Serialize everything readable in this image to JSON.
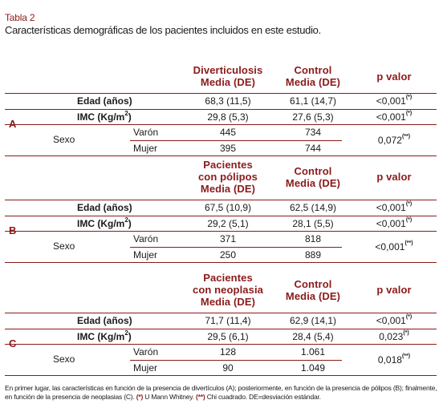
{
  "caption": {
    "label": "Tabla 2",
    "title": "Características demográficas de los pacientes incluidos en este estudio."
  },
  "sections": [
    {
      "letter": "A",
      "header1": [
        "Diverticulosis",
        "Media (DE)"
      ],
      "header2": [
        "Control",
        "Media (DE)"
      ],
      "header_p": "p valor",
      "rows": {
        "edad": {
          "label": "Edad (años)",
          "v1": "68,3 (11,5)",
          "v2": "61,1 (14,7)",
          "p": "<0,001",
          "sup": "(*)"
        },
        "imc": {
          "label": "IMC (Kg/m",
          "label_sup": "2",
          "label_end": ")",
          "v1": "29,8 (5,3)",
          "v2": "27,6 (5,3)",
          "p": "<0,001",
          "sup": "(*)"
        },
        "sexo": {
          "label": "Sexo",
          "varon": "Varón",
          "mujer": "Mujer",
          "v1_varon": "445",
          "v2_varon": "734",
          "v1_mujer": "395",
          "v2_mujer": "744",
          "p": "0,072",
          "sup": "(**)"
        }
      }
    },
    {
      "letter": "B",
      "header1": [
        "Pacientes",
        "con pólipos",
        "Media (DE)"
      ],
      "header2": [
        "Control",
        "Media (DE)"
      ],
      "header_p": "p valor",
      "rows": {
        "edad": {
          "label": "Edad (años)",
          "v1": "67,5 (10,9)",
          "v2": "62,5 (14,9)",
          "p": "<0,001",
          "sup": "(*)"
        },
        "imc": {
          "label": "IMC (Kg/m",
          "label_sup": "2",
          "label_end": ")",
          "v1": "29,2 (5,1)",
          "v2": "28,1 (5,5)",
          "p": "<0,001",
          "sup": "(*)"
        },
        "sexo": {
          "label": "Sexo",
          "varon": "Varón",
          "mujer": "Mujer",
          "v1_varon": "371",
          "v2_varon": "818",
          "v1_mujer": "250",
          "v2_mujer": "889",
          "p": "<0,001",
          "sup": "(**)"
        }
      }
    },
    {
      "letter": "C",
      "header1": [
        "Pacientes",
        "con neoplasia",
        "Media (DE)"
      ],
      "header2": [
        "Control",
        "Media (DE)"
      ],
      "header_p": "p valor",
      "rows": {
        "edad": {
          "label": "Edad (años)",
          "v1": "71,7 (11,4)",
          "v2": "62,9 (14,1)",
          "p": "<0,001",
          "sup": "(*)"
        },
        "imc": {
          "label": "IMC (Kg/m",
          "label_sup": "2",
          "label_end": ")",
          "v1": "29,5 (6,1)",
          "v2": "28,4 (5,4)",
          "p": "0,023",
          "sup": "(*)"
        },
        "sexo": {
          "label": "Sexo",
          "varon": "Varón",
          "mujer": "Mujer",
          "v1_varon": "128",
          "v2_varon": "1.061",
          "v1_mujer": "90",
          "v2_mujer": "1.049",
          "p": "0,018",
          "sup": "(**)"
        }
      }
    }
  ],
  "footnote": {
    "text1": "En primer lugar, las características en función de la presencia de divertículos (A); posteriormente, en función de la presencia de pólipos (B); finalmente, en función de la presencia de neoplasias (C).",
    "mark1": "(*)",
    "text2": "U Mann Whitney.",
    "mark2": "(**)",
    "text3": "Chi cuadrado. DE=desviación estándar."
  }
}
